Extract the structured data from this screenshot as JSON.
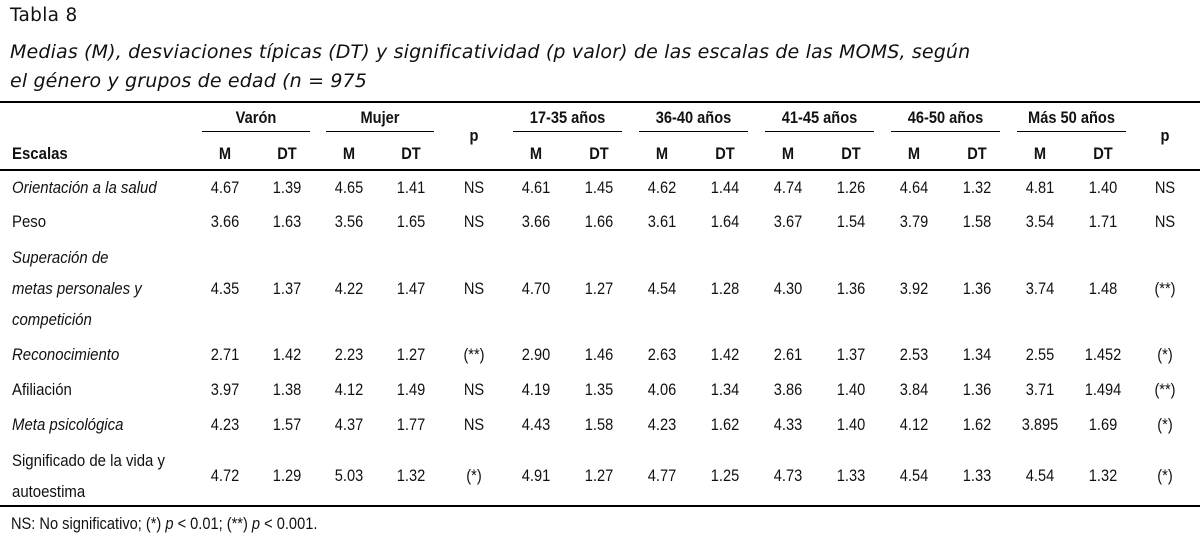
{
  "table_number": "Tabla 8",
  "caption_lines": [
    "Medias (M), desviaciones típicas (DT) y significatividad (p valor) de las escalas de las MOMS, según",
    "el género y grupos de edad (n = 975"
  ],
  "groups": [
    {
      "label": "Varón"
    },
    {
      "label": "Mujer"
    },
    {
      "label": "17-35 años"
    },
    {
      "label": "36-40 años"
    },
    {
      "label": "41-45 años"
    },
    {
      "label": "46-50 años"
    },
    {
      "label": "Más 50 años"
    }
  ],
  "p_header": "p",
  "scales_header": "Escalas",
  "m_label": "M",
  "dt_label": "DT",
  "rows": [
    {
      "label_lines": [
        "Orientación a la salud"
      ],
      "italic": true,
      "values": [
        "4.67",
        "1.39",
        "4.65",
        "1.41",
        "NS",
        "4.61",
        "1.45",
        "4.62",
        "1.44",
        "4.74",
        "1.26",
        "4.64",
        "1.32",
        "4.81",
        "1.40",
        "NS"
      ]
    },
    {
      "label_lines": [
        "Peso"
      ],
      "italic": false,
      "values": [
        "3.66",
        "1.63",
        "3.56",
        "1.65",
        "NS",
        "3.66",
        "1.66",
        "3.61",
        "1.64",
        "3.67",
        "1.54",
        "3.79",
        "1.58",
        "3.54",
        "1.71",
        "NS"
      ]
    },
    {
      "label_lines": [
        "Superación de",
        "metas personales y",
        "competición"
      ],
      "italic": true,
      "values": [
        "4.35",
        "1.37",
        "4.22",
        "1.47",
        "NS",
        "4.70",
        "1.27",
        "4.54",
        "1.28",
        "4.30",
        "1.36",
        "3.92",
        "1.36",
        "3.74",
        "1.48",
        "(**)"
      ]
    },
    {
      "label_lines": [
        "Reconocimiento"
      ],
      "italic": true,
      "values": [
        "2.71",
        "1.42",
        "2.23",
        "1.27",
        "(**)",
        "2.90",
        "1.46",
        "2.63",
        "1.42",
        "2.61",
        "1.37",
        "2.53",
        "1.34",
        "2.55",
        "1.452",
        "(*)"
      ]
    },
    {
      "label_lines": [
        "Afiliación"
      ],
      "italic": false,
      "values": [
        "3.97",
        "1.38",
        "4.12",
        "1.49",
        "NS",
        "4.19",
        "1.35",
        "4.06",
        "1.34",
        "3.86",
        "1.40",
        "3.84",
        "1.36",
        "3.71",
        "1.494",
        "(**)"
      ]
    },
    {
      "label_lines": [
        "Meta psicológica"
      ],
      "italic": true,
      "values": [
        "4.23",
        "1.57",
        "4.37",
        "1.77",
        "NS",
        "4.43",
        "1.58",
        "4.23",
        "1.62",
        "4.33",
        "1.40",
        "4.12",
        "1.62",
        "3.895",
        "1.69",
        "(*)"
      ]
    },
    {
      "label_lines": [
        "Significado de la vida y",
        "autoestima"
      ],
      "italic": false,
      "values": [
        "4.72",
        "1.29",
        "5.03",
        "1.32",
        "(*)",
        "4.91",
        "1.27",
        "4.77",
        "1.25",
        "4.73",
        "1.33",
        "4.54",
        "1.33",
        "4.54",
        "1.32",
        "(*)"
      ]
    }
  ],
  "footnote": {
    "prefix": "NS: No significativo; (*) ",
    "p1": "p",
    "mid": " < 0.01; (**) ",
    "p2": "p",
    "suffix": " < 0.001."
  }
}
